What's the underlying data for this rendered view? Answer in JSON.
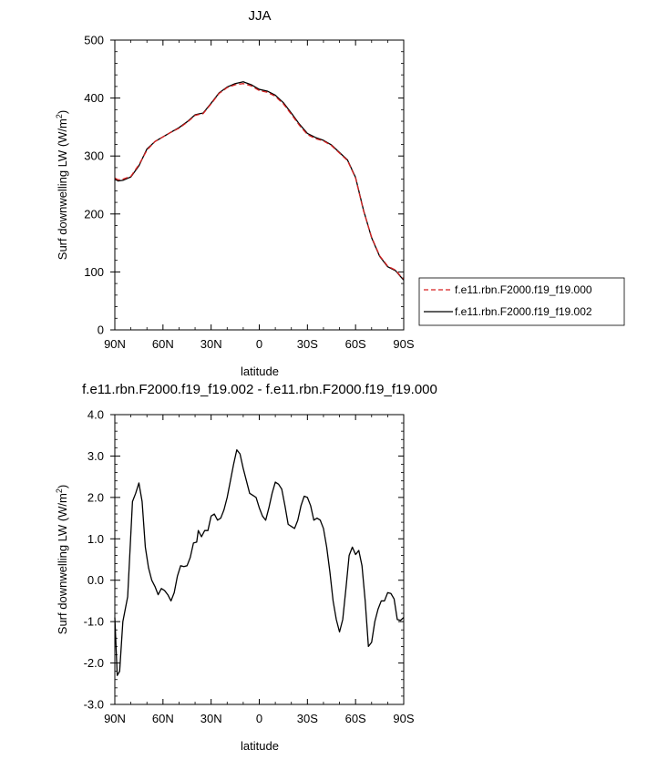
{
  "chart_data": [
    {
      "type": "line",
      "title": "JJA",
      "xlabel": "latitude",
      "ylabel": "Surf downwelling LW (W/m",
      "ylabel_sup": "2",
      "ylabel_close": ")",
      "xlim": [
        90,
        -90
      ],
      "ylim": [
        0,
        500
      ],
      "x_ticks": [
        90,
        60,
        30,
        0,
        -30,
        -60,
        -90
      ],
      "x_tick_labels": [
        "90N",
        "60N",
        "30N",
        "0",
        "30S",
        "60S",
        "90S"
      ],
      "y_ticks": [
        0,
        100,
        200,
        300,
        400,
        500
      ],
      "y_tick_labels": [
        "0",
        "100",
        "200",
        "300",
        "400",
        "500"
      ],
      "legend_position": "right, outside plot, near bottom",
      "series": [
        {
          "name": "f.e11.rbn.F2000.f19_f19.000",
          "color": "#d62020",
          "dash": "dashed",
          "x": [
            90,
            88,
            85,
            80,
            75,
            70,
            65,
            60,
            55,
            50,
            45,
            40,
            37,
            35,
            30,
            25,
            20,
            15,
            10,
            5,
            0,
            -5,
            -10,
            -15,
            -20,
            -25,
            -30,
            -35,
            -40,
            -45,
            -50,
            -55,
            -60,
            -65,
            -70,
            -75,
            -80,
            -85,
            -88,
            -90
          ],
          "y": [
            262,
            259,
            260,
            265,
            285,
            310,
            325,
            333,
            341,
            348,
            358,
            370,
            372,
            373,
            390,
            408,
            418,
            423,
            425,
            421,
            413,
            410,
            403,
            390,
            372,
            353,
            337,
            330,
            326,
            318,
            305,
            292,
            262,
            205,
            160,
            128,
            110,
            103,
            93,
            88
          ]
        },
        {
          "name": "f.e11.rbn.F2000.f19_f19.002",
          "color": "#000000",
          "dash": "solid",
          "x": [
            90,
            88,
            85,
            80,
            75,
            70,
            65,
            60,
            55,
            50,
            45,
            40,
            37,
            35,
            30,
            25,
            20,
            15,
            10,
            5,
            0,
            -5,
            -10,
            -15,
            -20,
            -25,
            -30,
            -35,
            -40,
            -45,
            -50,
            -55,
            -60,
            -65,
            -70,
            -75,
            -80,
            -85,
            -88,
            -90
          ],
          "y": [
            260,
            257,
            258,
            264,
            283,
            312,
            325,
            333,
            341,
            349,
            359,
            371,
            373,
            374,
            391,
            409,
            419,
            425,
            428,
            423,
            415,
            412,
            405,
            392,
            374,
            355,
            339,
            332,
            327,
            319,
            306,
            293,
            263,
            206,
            159,
            127,
            109,
            102,
            92,
            86
          ]
        }
      ]
    },
    {
      "type": "line",
      "title": "f.e11.rbn.F2000.f19_f19.002 - f.e11.rbn.F2000.f19_f19.000",
      "xlabel": "latitude",
      "ylabel": "Surf downwelling LW (W/m",
      "ylabel_sup": "2",
      "ylabel_close": ")",
      "xlim": [
        90,
        -90
      ],
      "ylim": [
        -3.0,
        4.0
      ],
      "x_ticks": [
        90,
        60,
        30,
        0,
        -30,
        -60,
        -90
      ],
      "x_tick_labels": [
        "90N",
        "60N",
        "30N",
        "0",
        "30S",
        "60S",
        "90S"
      ],
      "y_ticks": [
        -3.0,
        -2.0,
        -1.0,
        0.0,
        1.0,
        2.0,
        3.0,
        4.0
      ],
      "y_tick_labels": [
        "-3.0",
        "-2.0",
        "-1.0",
        "0.0",
        "1.0",
        "2.0",
        "3.0",
        "4.0"
      ],
      "series": [
        {
          "color": "#000000",
          "dash": "solid",
          "x": [
            90,
            88.5,
            87,
            85,
            82,
            79,
            77,
            75,
            73,
            71,
            69,
            67,
            65,
            63,
            61,
            59,
            57,
            55,
            53,
            51,
            49,
            47,
            45,
            43,
            41,
            39,
            38,
            36,
            34,
            32,
            30,
            28,
            26,
            24,
            22,
            20,
            18,
            16,
            14,
            12,
            10,
            8,
            6,
            4,
            2,
            0,
            -2,
            -4,
            -6,
            -8,
            -10,
            -12,
            -14,
            -16,
            -18,
            -20,
            -22,
            -24,
            -26,
            -28,
            -30,
            -32,
            -34,
            -36,
            -38,
            -40,
            -42,
            -44,
            -46,
            -48,
            -50,
            -52,
            -54,
            -56,
            -58,
            -60,
            -62,
            -64,
            -66,
            -68,
            -70,
            -72,
            -74,
            -76,
            -78,
            -80,
            -82,
            -84,
            -86,
            -88,
            -90
          ],
          "y": [
            -0.9,
            -2.3,
            -2.2,
            -1.0,
            -0.4,
            1.9,
            2.1,
            2.35,
            1.9,
            0.8,
            0.3,
            0.0,
            -0.15,
            -0.35,
            -0.2,
            -0.25,
            -0.35,
            -0.5,
            -0.3,
            0.1,
            0.35,
            0.33,
            0.35,
            0.55,
            0.9,
            0.92,
            1.2,
            1.05,
            1.2,
            1.2,
            1.55,
            1.6,
            1.45,
            1.5,
            1.7,
            2.0,
            2.4,
            2.8,
            3.15,
            3.05,
            2.7,
            2.4,
            2.1,
            2.05,
            2.0,
            1.75,
            1.55,
            1.45,
            1.75,
            2.1,
            2.37,
            2.32,
            2.2,
            1.8,
            1.35,
            1.3,
            1.25,
            1.45,
            1.8,
            2.03,
            2.0,
            1.8,
            1.45,
            1.5,
            1.45,
            1.25,
            0.8,
            0.2,
            -0.5,
            -0.95,
            -1.25,
            -0.95,
            -0.2,
            0.6,
            0.8,
            0.62,
            0.72,
            0.35,
            -0.5,
            -1.6,
            -1.5,
            -1.0,
            -0.7,
            -0.5,
            -0.5,
            -0.3,
            -0.32,
            -0.45,
            -0.95,
            -0.97,
            -0.9
          ]
        }
      ]
    }
  ]
}
